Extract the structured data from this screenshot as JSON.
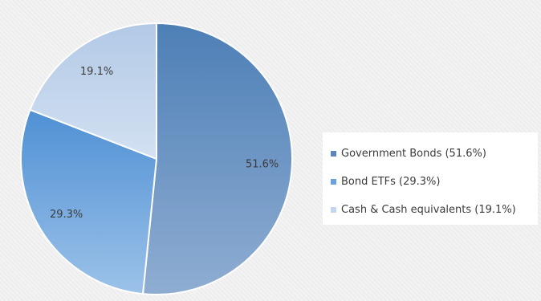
{
  "chart_data": {
    "type": "pie",
    "title": "",
    "slices": [
      {
        "label": "Government Bonds",
        "value": 51.6,
        "value_label": "51.6%",
        "legend_label": "Government Bonds (51.6%)",
        "color": "#6f97c6"
      },
      {
        "label": "Bond ETFs",
        "value": 29.3,
        "value_label": "29.3%",
        "legend_label": "Bond ETFs (29.3%)",
        "color": "#74aadf"
      },
      {
        "label": "Cash & Cash equivalents",
        "value": 19.1,
        "value_label": "19.1%",
        "legend_label": "Cash & Cash equivalents (19.1%)",
        "color": "#c3d6ee"
      }
    ],
    "legend_position": "right",
    "start_angle": "12 o'clock",
    "direction": "clockwise"
  }
}
